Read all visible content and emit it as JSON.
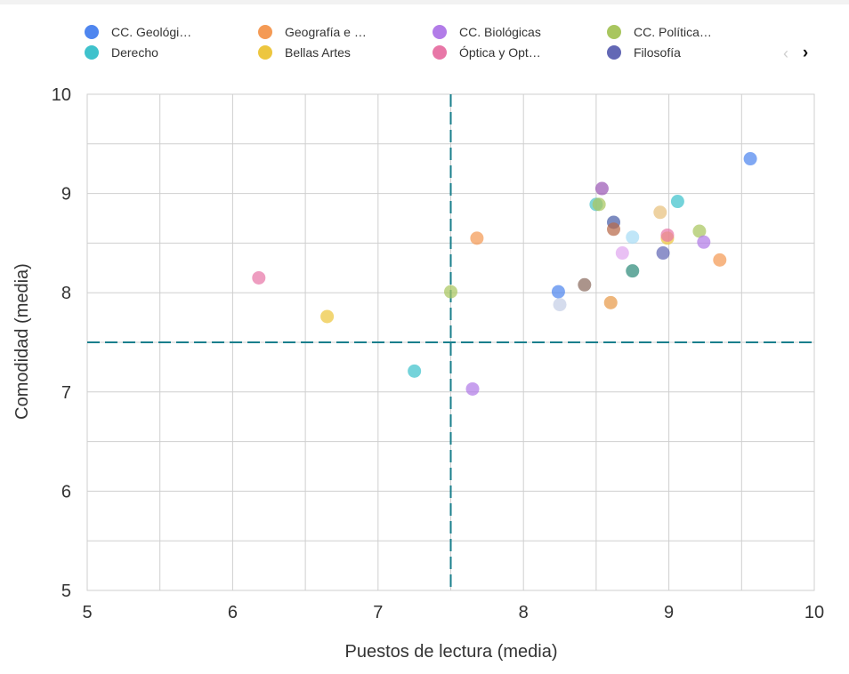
{
  "legend": {
    "items": [
      {
        "label": "CC. Geológi…",
        "color": "#4f86ef"
      },
      {
        "label": "Geografía e …",
        "color": "#f49a55"
      },
      {
        "label": "CC. Biológicas",
        "color": "#b27ce8"
      },
      {
        "label": "CC. Política…",
        "color": "#a9c65f"
      },
      {
        "label": "Derecho",
        "color": "#3fc2cc"
      },
      {
        "label": "Bellas Artes",
        "color": "#edc63f"
      },
      {
        "label": "Óptica y Opt…",
        "color": "#e877a7"
      },
      {
        "label": "Filosofía",
        "color": "#6368b5"
      }
    ],
    "prev_icon": "‹",
    "next_icon": "›"
  },
  "chart_data": {
    "type": "scatter",
    "xlabel": "Puestos de lectura (media)",
    "ylabel": "Comodidad (media)",
    "xlim": [
      5,
      10
    ],
    "ylim": [
      5,
      10
    ],
    "xticks": [
      5,
      6,
      7,
      8,
      9,
      10
    ],
    "yticks": [
      5,
      6,
      7,
      8,
      9,
      10
    ],
    "grid": true,
    "reference_lines": {
      "x": 7.5,
      "y": 7.5,
      "color": "#1a7f8c"
    },
    "points": [
      {
        "x": 9.56,
        "y": 9.35,
        "color": "#4f86ef"
      },
      {
        "x": 9.06,
        "y": 8.92,
        "color": "#3fc2cc"
      },
      {
        "x": 8.54,
        "y": 9.05,
        "color": "#9b59b6"
      },
      {
        "x": 8.5,
        "y": 8.89,
        "color": "#4fc3c9"
      },
      {
        "x": 8.52,
        "y": 8.89,
        "color": "#a9c65f"
      },
      {
        "x": 8.94,
        "y": 8.81,
        "color": "#e8c07d"
      },
      {
        "x": 8.62,
        "y": 8.71,
        "color": "#4a5ea8"
      },
      {
        "x": 8.62,
        "y": 8.64,
        "color": "#b86a4a"
      },
      {
        "x": 8.75,
        "y": 8.56,
        "color": "#a8dcf5"
      },
      {
        "x": 9.21,
        "y": 8.62,
        "color": "#a9c65f"
      },
      {
        "x": 8.99,
        "y": 8.55,
        "color": "#edc63f"
      },
      {
        "x": 8.99,
        "y": 8.58,
        "color": "#e877a7"
      },
      {
        "x": 9.24,
        "y": 8.51,
        "color": "#b27ce8"
      },
      {
        "x": 8.68,
        "y": 8.4,
        "color": "#e0a8f0"
      },
      {
        "x": 8.96,
        "y": 8.4,
        "color": "#6368b5"
      },
      {
        "x": 9.35,
        "y": 8.33,
        "color": "#f49a55"
      },
      {
        "x": 8.75,
        "y": 8.22,
        "color": "#2e8b7a"
      },
      {
        "x": 8.42,
        "y": 8.08,
        "color": "#8b6b5e"
      },
      {
        "x": 8.24,
        "y": 8.01,
        "color": "#4f86ef"
      },
      {
        "x": 8.25,
        "y": 7.88,
        "color": "#c5cfe6"
      },
      {
        "x": 8.6,
        "y": 7.9,
        "color": "#e89a4a"
      },
      {
        "x": 7.68,
        "y": 8.55,
        "color": "#f49a55"
      },
      {
        "x": 7.5,
        "y": 8.01,
        "color": "#a9c65f"
      },
      {
        "x": 7.65,
        "y": 7.03,
        "color": "#b27ce8"
      },
      {
        "x": 7.25,
        "y": 7.21,
        "color": "#3fc2cc"
      },
      {
        "x": 6.65,
        "y": 7.76,
        "color": "#edc63f"
      },
      {
        "x": 6.18,
        "y": 8.15,
        "color": "#e877a7"
      }
    ]
  }
}
